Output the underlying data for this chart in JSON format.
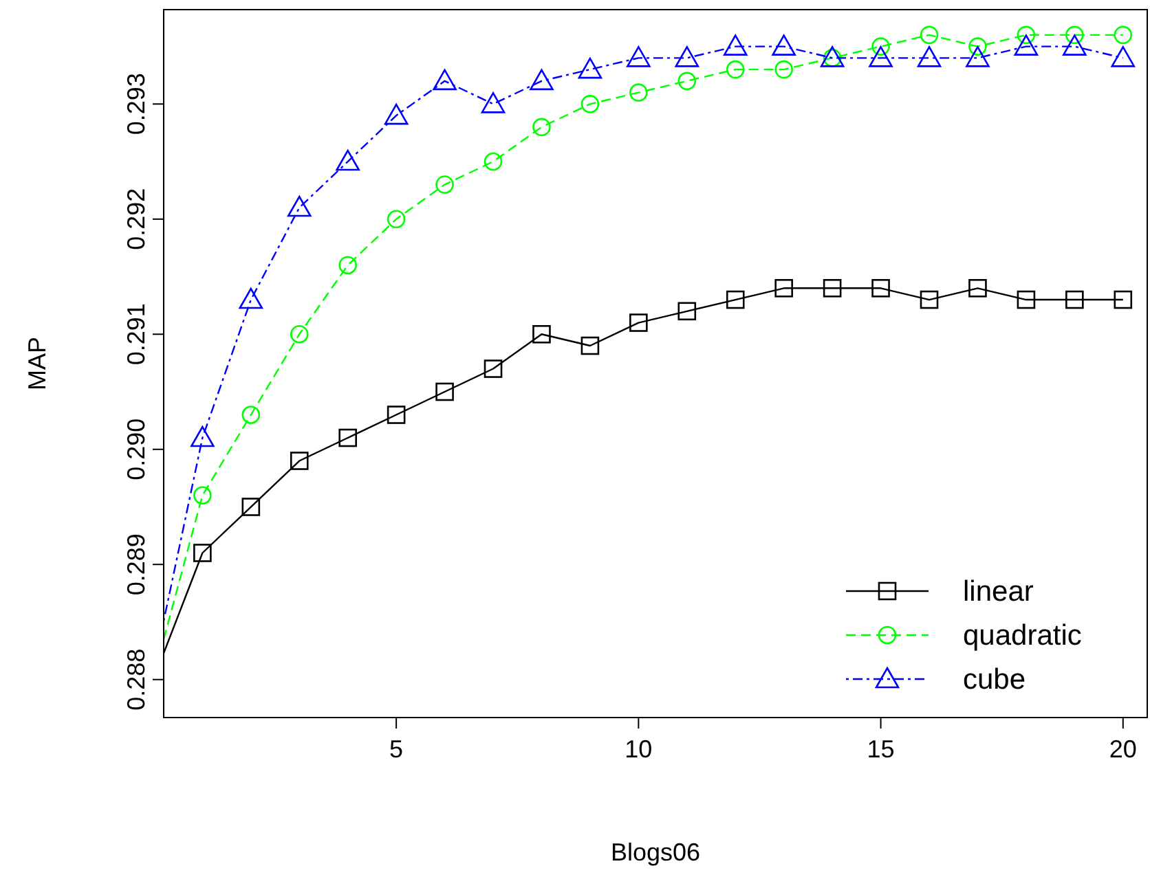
{
  "chart_data": {
    "type": "line",
    "xlabel": "Blogs06",
    "ylabel": "MAP",
    "x": [
      0.2,
      1,
      2,
      3,
      4,
      5,
      6,
      7,
      8,
      9,
      10,
      11,
      12,
      13,
      14,
      15,
      16,
      17,
      18,
      19,
      20
    ],
    "xlim": [
      0.2,
      20.5
    ],
    "xticks": [
      5,
      10,
      15,
      20
    ],
    "ylim": [
      0.28767,
      0.29382
    ],
    "yticks": [
      0.288,
      0.289,
      {
        "value": 0.29,
        "label": "0.290"
      },
      0.291,
      0.292,
      0.293
    ],
    "grid": false,
    "legend": "bottom right",
    "series": [
      {
        "name": "linear",
        "color": "#000000",
        "marker": "square",
        "line_style": "solid",
        "values": [
          0.28823,
          0.2891,
          0.2895,
          0.2899,
          0.2901,
          0.2903,
          0.2905,
          0.2907,
          0.291,
          0.2909,
          0.2911,
          0.2912,
          0.2913,
          0.2914,
          0.2914,
          0.2914,
          0.2913,
          0.2914,
          0.2913,
          0.2913,
          0.2913
        ]
      },
      {
        "name": "quadratic",
        "color": "#00ff00",
        "marker": "circle",
        "line_style": "dashed",
        "values": [
          0.28835,
          0.2896,
          0.2903,
          0.291,
          0.2916,
          0.292,
          0.2923,
          0.2925,
          0.2928,
          0.293,
          0.2931,
          0.2932,
          0.2933,
          0.2933,
          0.2934,
          0.2935,
          0.2936,
          0.2935,
          0.2936,
          0.2936,
          0.2936
        ]
      },
      {
        "name": "cube",
        "color": "#0000ff",
        "marker": "triangle",
        "line_style": "dotted",
        "values": [
          0.28851,
          0.2901,
          0.2913,
          0.2921,
          0.2925,
          0.2929,
          0.2932,
          0.293,
          0.2932,
          0.2933,
          0.2934,
          0.2934,
          0.2935,
          0.2935,
          0.2934,
          0.2934,
          0.2934,
          0.2934,
          0.2935,
          0.2935,
          0.2934
        ]
      }
    ]
  }
}
